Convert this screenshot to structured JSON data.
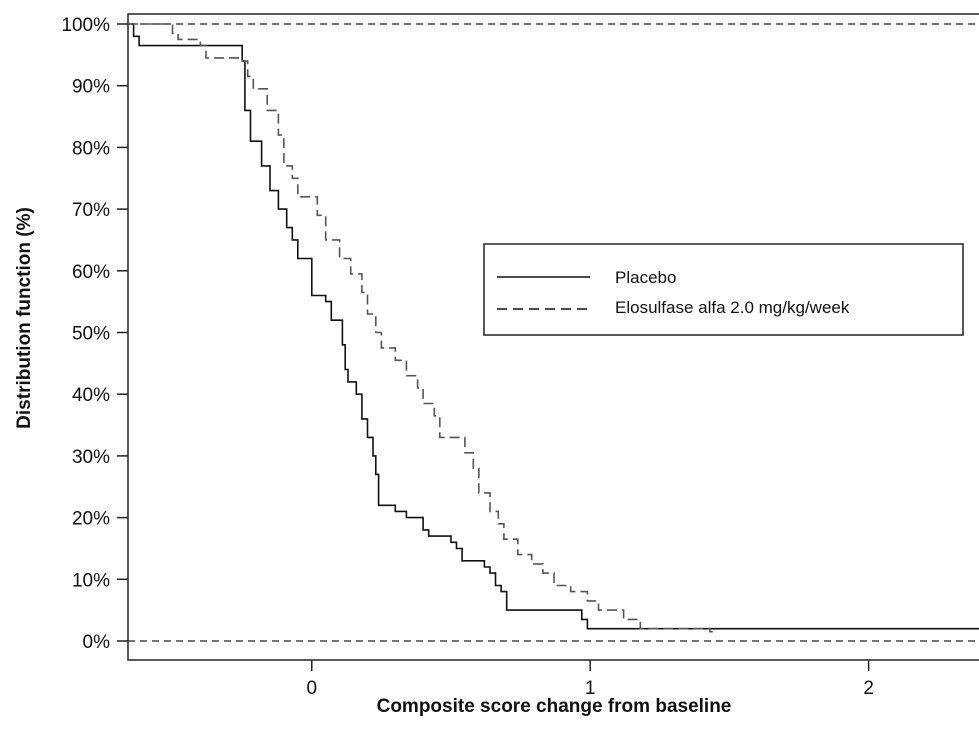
{
  "chart_data": {
    "type": "line",
    "title": "",
    "xlabel": "Composite score change from baseline",
    "ylabel": "Distribution function (%)",
    "xlim": [
      -0.66,
      2.4
    ],
    "ylim": [
      0,
      100
    ],
    "x_ticks": [
      0,
      1,
      2
    ],
    "x_tick_labels": [
      "0",
      "1",
      "2"
    ],
    "y_ticks": [
      0,
      10,
      20,
      30,
      40,
      50,
      60,
      70,
      80,
      90,
      100
    ],
    "y_tick_labels": [
      "0%",
      "10%",
      "20%",
      "30%",
      "40%",
      "50%",
      "60%",
      "70%",
      "80%",
      "90%",
      "100%"
    ],
    "reference_lines": [
      0,
      100
    ],
    "legend_position": "right",
    "series": [
      {
        "name": "Placebo",
        "style": "solid",
        "color": "#111111",
        "step_points": [
          [
            -0.66,
            100
          ],
          [
            -0.64,
            98
          ],
          [
            -0.62,
            96.5
          ],
          [
            -0.25,
            94
          ],
          [
            -0.24,
            86
          ],
          [
            -0.22,
            81
          ],
          [
            -0.18,
            77
          ],
          [
            -0.15,
            73
          ],
          [
            -0.12,
            70
          ],
          [
            -0.09,
            67
          ],
          [
            -0.07,
            65
          ],
          [
            -0.05,
            62
          ],
          [
            0,
            56
          ],
          [
            0.05,
            55
          ],
          [
            0.07,
            52
          ],
          [
            0.11,
            48
          ],
          [
            0.12,
            44
          ],
          [
            0.13,
            42
          ],
          [
            0.16,
            40
          ],
          [
            0.18,
            36
          ],
          [
            0.2,
            33
          ],
          [
            0.22,
            30
          ],
          [
            0.23,
            27
          ],
          [
            0.24,
            22
          ],
          [
            0.3,
            21
          ],
          [
            0.34,
            20
          ],
          [
            0.4,
            18
          ],
          [
            0.42,
            17
          ],
          [
            0.5,
            16
          ],
          [
            0.52,
            15
          ],
          [
            0.54,
            13
          ],
          [
            0.62,
            12
          ],
          [
            0.64,
            11
          ],
          [
            0.66,
            9
          ],
          [
            0.68,
            8
          ],
          [
            0.7,
            5
          ],
          [
            0.97,
            3.5
          ],
          [
            0.99,
            2
          ],
          [
            2.4,
            2
          ]
        ]
      },
      {
        "name": "Elosulfase alfa 2.0 mg/kg/week",
        "style": "dashed",
        "color": "#555555",
        "step_points": [
          [
            -0.66,
            100
          ],
          [
            -0.5,
            98.5
          ],
          [
            -0.48,
            97.5
          ],
          [
            -0.4,
            96.5
          ],
          [
            -0.38,
            94.5
          ],
          [
            -0.25,
            94
          ],
          [
            -0.23,
            91.5
          ],
          [
            -0.21,
            89.5
          ],
          [
            -0.16,
            86
          ],
          [
            -0.12,
            82
          ],
          [
            -0.1,
            77
          ],
          [
            -0.07,
            75
          ],
          [
            -0.05,
            72
          ],
          [
            0.02,
            69
          ],
          [
            0.05,
            65
          ],
          [
            0.1,
            62
          ],
          [
            0.14,
            59.5
          ],
          [
            0.18,
            56.5
          ],
          [
            0.2,
            53
          ],
          [
            0.23,
            50
          ],
          [
            0.25,
            47.5
          ],
          [
            0.3,
            45.5
          ],
          [
            0.34,
            43
          ],
          [
            0.38,
            41
          ],
          [
            0.4,
            38.5
          ],
          [
            0.44,
            36.5
          ],
          [
            0.46,
            33
          ],
          [
            0.55,
            30.5
          ],
          [
            0.58,
            28
          ],
          [
            0.6,
            24
          ],
          [
            0.64,
            21
          ],
          [
            0.67,
            19
          ],
          [
            0.69,
            16.5
          ],
          [
            0.74,
            14
          ],
          [
            0.79,
            12.5
          ],
          [
            0.83,
            11
          ],
          [
            0.87,
            9
          ],
          [
            0.93,
            8
          ],
          [
            0.99,
            6.5
          ],
          [
            1.03,
            5
          ],
          [
            1.12,
            3.5
          ],
          [
            1.18,
            2
          ],
          [
            1.43,
            1.5
          ],
          [
            1.44,
            1.5
          ]
        ]
      }
    ]
  }
}
